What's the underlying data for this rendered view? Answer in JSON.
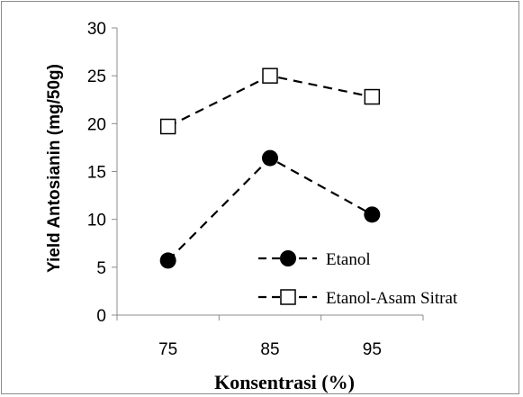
{
  "chart_data": {
    "type": "line",
    "categories": [
      "75",
      "85",
      "95"
    ],
    "series": [
      {
        "name": "Etanol",
        "values": [
          5.7,
          16.4,
          10.5
        ],
        "marker": "filled-circle",
        "line": "dashed",
        "color": "#000000"
      },
      {
        "name": "Etanol-Asam Sitrat",
        "values": [
          19.7,
          25.0,
          22.8
        ],
        "marker": "open-square",
        "line": "dashed",
        "color": "#000000"
      }
    ],
    "title": "",
    "xlabel": "Konsentrasi (%)",
    "ylabel": "Yield Antosianin (mg/50g)",
    "ylim": [
      0,
      30
    ],
    "yticks": [
      "0",
      "5",
      "10",
      "15",
      "20",
      "25",
      "30"
    ],
    "grid": false,
    "legend_position": "bottom-right"
  }
}
